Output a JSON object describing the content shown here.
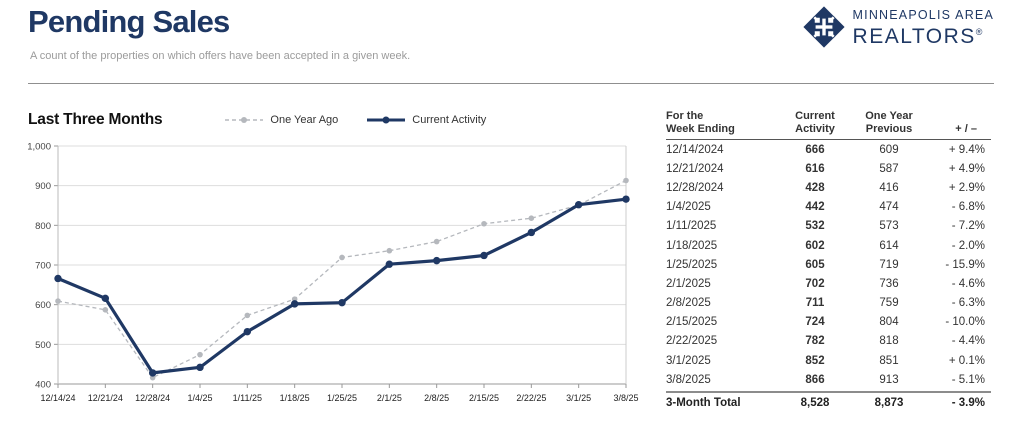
{
  "header": {
    "title": "Pending Sales",
    "subtitle": "A count of the properties on which offers have been accepted in a given week.",
    "logo": {
      "line1": "MINNEAPOLIS AREA",
      "line2": "REALTORS",
      "reg": "®"
    },
    "brand_color": "#1f3864"
  },
  "chart": {
    "section_title": "Last Three Months"
  },
  "chart_data": {
    "type": "line",
    "title": "Last Three Months",
    "x": [
      "12/14/24",
      "12/21/24",
      "12/28/24",
      "1/4/25",
      "1/11/25",
      "1/18/25",
      "1/25/25",
      "2/1/25",
      "2/8/25",
      "2/15/25",
      "2/22/25",
      "3/1/25",
      "3/8/25"
    ],
    "series": [
      {
        "name": "One Year Ago",
        "values": [
          609,
          587,
          416,
          474,
          573,
          614,
          719,
          736,
          759,
          804,
          818,
          851,
          913
        ],
        "color": "#b5b8bd",
        "style": "dashed"
      },
      {
        "name": "Current Activity",
        "values": [
          666,
          616,
          428,
          442,
          532,
          602,
          605,
          702,
          711,
          724,
          782,
          852,
          866
        ],
        "color": "#1f3864",
        "style": "solid"
      }
    ],
    "ylim": [
      400,
      1000
    ],
    "yticks": [
      400,
      500,
      600,
      700,
      800,
      900,
      1000
    ],
    "ytick_labels": [
      "400",
      "500",
      "600",
      "700",
      "800",
      "900",
      "1,000"
    ],
    "xlabel": "",
    "ylabel": "",
    "grid": "horizontal",
    "legend_position": "top"
  },
  "table": {
    "headers": [
      {
        "line1": "For the",
        "line2": "Week Ending"
      },
      {
        "line1": "Current",
        "line2": "Activity"
      },
      {
        "line1": "One Year",
        "line2": "Previous"
      },
      {
        "line1": "",
        "line2": "+ / –"
      }
    ],
    "rows": [
      {
        "date": "12/14/2024",
        "current": "666",
        "previous": "609",
        "change": "+ 9.4%"
      },
      {
        "date": "12/21/2024",
        "current": "616",
        "previous": "587",
        "change": "+ 4.9%"
      },
      {
        "date": "12/28/2024",
        "current": "428",
        "previous": "416",
        "change": "+ 2.9%"
      },
      {
        "date": "1/4/2025",
        "current": "442",
        "previous": "474",
        "change": "- 6.8%"
      },
      {
        "date": "1/11/2025",
        "current": "532",
        "previous": "573",
        "change": "- 7.2%"
      },
      {
        "date": "1/18/2025",
        "current": "602",
        "previous": "614",
        "change": "- 2.0%"
      },
      {
        "date": "1/25/2025",
        "current": "605",
        "previous": "719",
        "change": "- 15.9%"
      },
      {
        "date": "2/1/2025",
        "current": "702",
        "previous": "736",
        "change": "- 4.6%"
      },
      {
        "date": "2/8/2025",
        "current": "711",
        "previous": "759",
        "change": "- 6.3%"
      },
      {
        "date": "2/15/2025",
        "current": "724",
        "previous": "804",
        "change": "- 10.0%"
      },
      {
        "date": "2/22/2025",
        "current": "782",
        "previous": "818",
        "change": "- 4.4%"
      },
      {
        "date": "3/1/2025",
        "current": "852",
        "previous": "851",
        "change": "+ 0.1%"
      },
      {
        "date": "3/8/2025",
        "current": "866",
        "previous": "913",
        "change": "- 5.1%"
      }
    ],
    "total": {
      "date": "3-Month Total",
      "current": "8,528",
      "previous": "8,873",
      "change": "- 3.9%"
    }
  }
}
